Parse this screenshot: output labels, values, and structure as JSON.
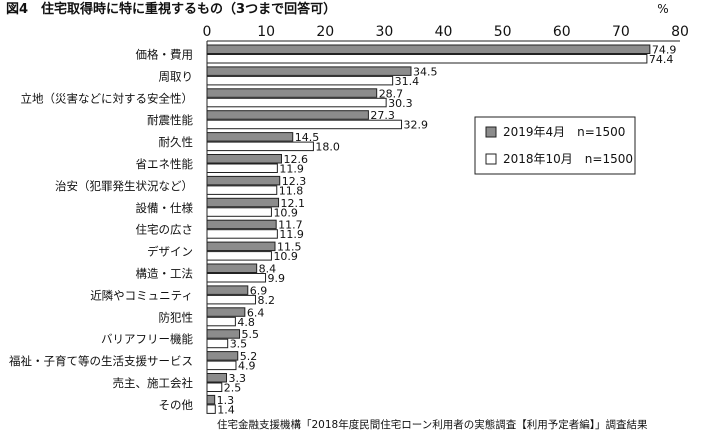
{
  "chart_data": {
    "type": "bar",
    "orientation": "horizontal",
    "title": "図4　住宅取得時に特に重視するもの（3つまで回答可）",
    "unit": "%",
    "xlim": [
      0,
      80
    ],
    "x_ticks": [
      "0",
      "10",
      "20",
      "30",
      "40",
      "50",
      "60",
      "70",
      "80"
    ],
    "categories": [
      "価格・費用",
      "周取り",
      "立地（災害などに対する安全性）",
      "耐震性能",
      "耐久性",
      "省エネ性能",
      "治安（犯罪発生状況など）",
      "設備・仕様",
      "住宅の広さ",
      "デザイン",
      "構造・工法",
      "近隣やコミュニティ",
      "防犯性",
      "バリアフリー機能",
      "福祉・子育て等の生活支援サービス",
      "売主、施工会社",
      "その他"
    ],
    "series": [
      {
        "name": "2019年4月　n=1500",
        "color": "#8c8c8c",
        "values": [
          74.9,
          34.5,
          28.7,
          27.3,
          14.5,
          12.6,
          12.3,
          12.1,
          11.7,
          11.5,
          8.4,
          6.9,
          6.4,
          5.5,
          5.2,
          3.3,
          1.3
        ],
        "labels": [
          "74.9",
          "34.5",
          "28.7",
          "27.3",
          "14.5",
          "12.6",
          "12.3",
          "12.1",
          "11.7",
          "11.5",
          "8.4",
          "6.9",
          "6.4",
          "5.5",
          "5.2",
          "3.3",
          "1.3"
        ]
      },
      {
        "name": "2018年10月　n=1500",
        "color": "#ffffff",
        "values": [
          74.4,
          31.4,
          30.3,
          32.9,
          18.0,
          11.9,
          11.8,
          10.9,
          11.9,
          10.9,
          9.9,
          8.2,
          4.8,
          3.5,
          4.9,
          2.5,
          1.4
        ],
        "labels": [
          "74.4",
          "31.4",
          "30.3",
          "32.9",
          "18.0",
          "11.9",
          "11.8",
          "10.9",
          "11.9",
          "10.9",
          "9.9",
          "8.2",
          "4.8",
          "3.5",
          "4.9",
          "2.5",
          "1.4"
        ]
      }
    ],
    "legend_position": "right-middle",
    "grid": false
  },
  "source": "住宅金融支援機構「2018年度民間住宅ローン利用者の実態調査【利用予定者編】」調査結果"
}
